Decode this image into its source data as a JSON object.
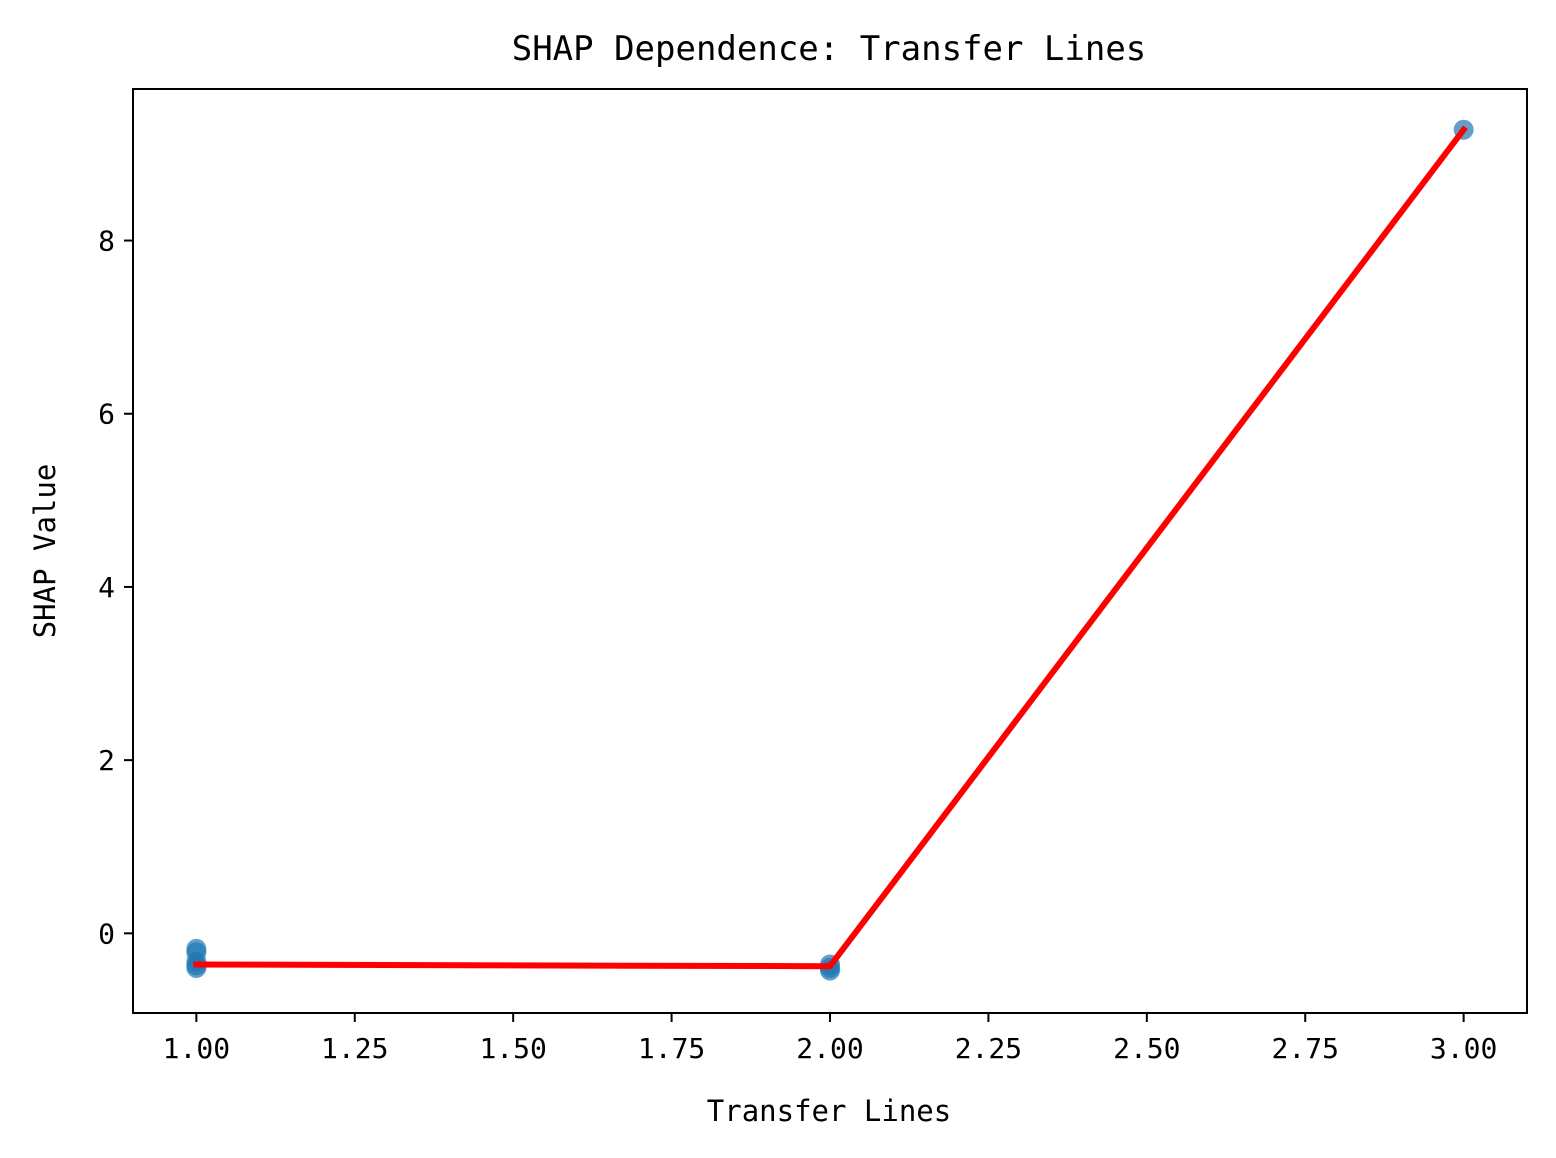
{
  "chart_data": {
    "type": "scatter",
    "title": "SHAP Dependence: Transfer Lines",
    "xlabel": "Transfer Lines",
    "ylabel": "SHAP Value",
    "xlim": [
      0.9,
      3.1
    ],
    "ylim": [
      -0.92,
      9.75
    ],
    "x_ticks": [
      1.0,
      1.25,
      1.5,
      1.75,
      2.0,
      2.25,
      2.5,
      2.75,
      3.0
    ],
    "x_tick_labels": [
      "1.00",
      "1.25",
      "1.50",
      "1.75",
      "2.00",
      "2.25",
      "2.50",
      "2.75",
      "3.00"
    ],
    "y_ticks": [
      0,
      2,
      4,
      6,
      8
    ],
    "y_tick_labels": [
      "0",
      "2",
      "4",
      "6",
      "8"
    ],
    "grid": false,
    "series": [
      {
        "kind": "scatter",
        "color": "#1f77b4",
        "points": [
          {
            "x": 1.0,
            "y": -0.18
          },
          {
            "x": 1.0,
            "y": -0.22
          },
          {
            "x": 1.0,
            "y": -0.33
          },
          {
            "x": 1.0,
            "y": -0.37
          },
          {
            "x": 1.0,
            "y": -0.4
          },
          {
            "x": 2.0,
            "y": -0.36
          },
          {
            "x": 2.0,
            "y": -0.4
          },
          {
            "x": 2.0,
            "y": -0.43
          },
          {
            "x": 3.0,
            "y": 9.28
          }
        ]
      },
      {
        "kind": "line",
        "color": "#ff0000",
        "points": [
          {
            "x": 1.0,
            "y": -0.36
          },
          {
            "x": 2.0,
            "y": -0.38
          },
          {
            "x": 3.0,
            "y": 9.28
          }
        ]
      }
    ]
  }
}
